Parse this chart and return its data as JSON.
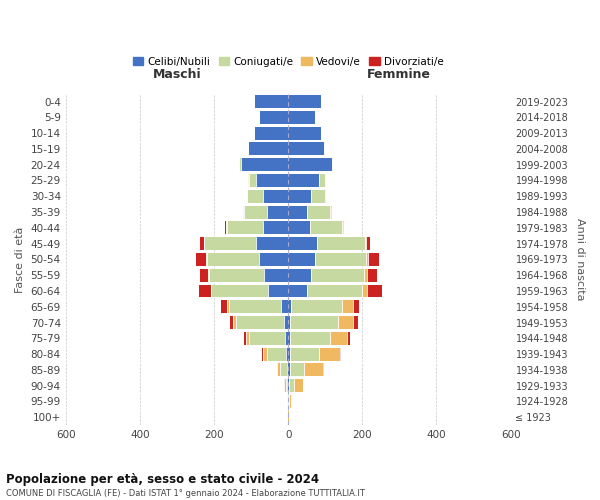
{
  "age_groups": [
    "0-4",
    "5-9",
    "10-14",
    "15-19",
    "20-24",
    "25-29",
    "30-34",
    "35-39",
    "40-44",
    "45-49",
    "50-54",
    "55-59",
    "60-64",
    "65-69",
    "70-74",
    "75-79",
    "80-84",
    "85-89",
    "90-94",
    "95-99",
    "100+"
  ],
  "birth_years": [
    "2019-2023",
    "2014-2018",
    "2009-2013",
    "2004-2008",
    "1999-2003",
    "1994-1998",
    "1989-1993",
    "1984-1988",
    "1979-1983",
    "1974-1978",
    "1969-1973",
    "1964-1968",
    "1959-1963",
    "1954-1958",
    "1949-1953",
    "1944-1948",
    "1939-1943",
    "1934-1938",
    "1929-1933",
    "1924-1928",
    "≤ 1923"
  ],
  "colors": {
    "celibi": "#4472C4",
    "coniugati": "#c5d9a0",
    "vedovi": "#f0b860",
    "divorziati": "#cc2222"
  },
  "male_celibi": [
    92,
    78,
    92,
    108,
    128,
    88,
    68,
    58,
    68,
    88,
    78,
    65,
    55,
    18,
    12,
    8,
    5,
    4,
    2,
    1,
    0
  ],
  "male_coniugati": [
    0,
    0,
    0,
    1,
    4,
    18,
    42,
    62,
    98,
    138,
    142,
    148,
    152,
    142,
    128,
    98,
    52,
    18,
    5,
    1,
    0
  ],
  "male_vedovi": [
    0,
    0,
    0,
    0,
    0,
    1,
    1,
    1,
    1,
    1,
    1,
    2,
    2,
    4,
    8,
    8,
    12,
    8,
    3,
    1,
    0
  ],
  "male_divorziati": [
    0,
    0,
    0,
    0,
    0,
    0,
    1,
    2,
    4,
    12,
    28,
    22,
    32,
    18,
    8,
    5,
    2,
    0,
    0,
    0,
    0
  ],
  "female_celibi": [
    88,
    72,
    88,
    98,
    118,
    82,
    62,
    52,
    58,
    78,
    72,
    62,
    52,
    8,
    6,
    4,
    4,
    4,
    2,
    1,
    0
  ],
  "female_coniugati": [
    0,
    0,
    0,
    1,
    4,
    18,
    38,
    62,
    88,
    128,
    138,
    142,
    148,
    138,
    128,
    108,
    78,
    38,
    14,
    2,
    0
  ],
  "female_vedovi": [
    0,
    0,
    0,
    0,
    0,
    0,
    1,
    1,
    2,
    4,
    6,
    8,
    14,
    28,
    42,
    48,
    58,
    52,
    24,
    5,
    1
  ],
  "female_divorziati": [
    0,
    0,
    0,
    0,
    0,
    1,
    1,
    2,
    4,
    12,
    28,
    28,
    38,
    18,
    12,
    8,
    2,
    2,
    1,
    0,
    0
  ],
  "title": "Popolazione per età, sesso e stato civile - 2024",
  "subtitle": "COMUNE DI FISCAGLIA (FE) - Dati ISTAT 1° gennaio 2024 - Elaborazione TUTTITALIA.IT",
  "xlabel_left": "Maschi",
  "xlabel_right": "Femmine",
  "ylabel_left": "Fasce di età",
  "ylabel_right": "Anni di nascita",
  "xlim": 600,
  "legend_labels": [
    "Celibi/Nubili",
    "Coniugati/e",
    "Vedovi/e",
    "Divorziati/e"
  ],
  "background_color": "#ffffff",
  "grid_color": "#c8c8c8"
}
